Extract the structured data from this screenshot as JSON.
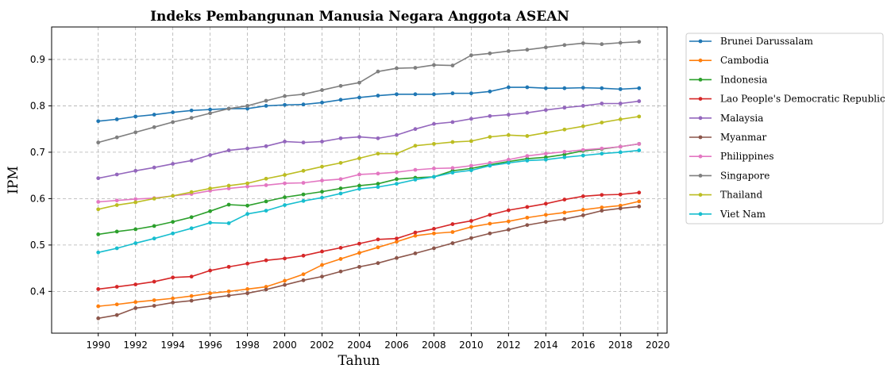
{
  "chart_data": {
    "type": "line",
    "title": "Indeks Pembangunan Manusia Negara Anggota ASEAN",
    "xlabel": "Tahun",
    "ylabel": "IPM",
    "xlim": [
      1987.5,
      2020.5
    ],
    "ylim": [
      0.31,
      0.97
    ],
    "xticks": [
      1990,
      1992,
      1994,
      1996,
      1998,
      2000,
      2002,
      2004,
      2006,
      2008,
      2010,
      2012,
      2014,
      2016,
      2018,
      2020
    ],
    "yticks": [
      0.4,
      0.5,
      0.6,
      0.7,
      0.8,
      0.9
    ],
    "grid": true,
    "legend_position": "outside-right",
    "x": [
      1990,
      1991,
      1992,
      1993,
      1994,
      1995,
      1996,
      1997,
      1998,
      1999,
      2000,
      2001,
      2002,
      2003,
      2004,
      2005,
      2006,
      2007,
      2008,
      2009,
      2010,
      2011,
      2012,
      2013,
      2014,
      2015,
      2016,
      2017,
      2018,
      2019
    ],
    "series": [
      {
        "name": "Brunei Darussalam",
        "color": "#1f77b4",
        "values": [
          0.767,
          0.771,
          0.777,
          0.781,
          0.786,
          0.79,
          0.792,
          0.794,
          0.794,
          0.8,
          0.802,
          0.803,
          0.807,
          0.813,
          0.818,
          0.822,
          0.825,
          0.825,
          0.825,
          0.827,
          0.827,
          0.831,
          0.84,
          0.84,
          0.838,
          0.838,
          0.839,
          0.838,
          0.836,
          0.838
        ]
      },
      {
        "name": "Cambodia",
        "color": "#ff7f0e",
        "values": [
          0.368,
          0.372,
          0.377,
          0.381,
          0.385,
          0.39,
          0.396,
          0.4,
          0.405,
          0.41,
          0.423,
          0.437,
          0.457,
          0.47,
          0.483,
          0.495,
          0.507,
          0.52,
          0.525,
          0.528,
          0.539,
          0.546,
          0.551,
          0.559,
          0.565,
          0.57,
          0.576,
          0.581,
          0.585,
          0.594
        ]
      },
      {
        "name": "Indonesia",
        "color": "#2ca02c",
        "values": [
          0.523,
          0.529,
          0.534,
          0.541,
          0.55,
          0.56,
          0.573,
          0.587,
          0.585,
          0.594,
          0.603,
          0.609,
          0.615,
          0.622,
          0.628,
          0.632,
          0.642,
          0.645,
          0.647,
          0.66,
          0.665,
          0.673,
          0.68,
          0.686,
          0.689,
          0.695,
          0.703,
          0.707,
          0.712,
          0.718
        ]
      },
      {
        "name": "Lao People's Democratic Republic",
        "color": "#d62728",
        "values": [
          0.405,
          0.41,
          0.415,
          0.421,
          0.43,
          0.432,
          0.445,
          0.453,
          0.46,
          0.467,
          0.471,
          0.477,
          0.486,
          0.494,
          0.503,
          0.512,
          0.514,
          0.527,
          0.535,
          0.545,
          0.552,
          0.565,
          0.575,
          0.582,
          0.589,
          0.598,
          0.605,
          0.608,
          0.609,
          0.613
        ]
      },
      {
        "name": "Malaysia",
        "color": "#9467bd",
        "values": [
          0.644,
          0.652,
          0.66,
          0.667,
          0.675,
          0.682,
          0.694,
          0.704,
          0.708,
          0.713,
          0.723,
          0.721,
          0.723,
          0.73,
          0.733,
          0.73,
          0.737,
          0.75,
          0.761,
          0.765,
          0.772,
          0.778,
          0.781,
          0.785,
          0.791,
          0.796,
          0.8,
          0.805,
          0.805,
          0.81
        ]
      },
      {
        "name": "Myanmar",
        "color": "#8c564b",
        "values": [
          0.342,
          0.349,
          0.364,
          0.369,
          0.376,
          0.38,
          0.386,
          0.391,
          0.396,
          0.404,
          0.414,
          0.424,
          0.432,
          0.443,
          0.453,
          0.461,
          0.472,
          0.482,
          0.493,
          0.504,
          0.515,
          0.525,
          0.533,
          0.543,
          0.55,
          0.556,
          0.564,
          0.574,
          0.579,
          0.583
        ]
      },
      {
        "name": "Philippines",
        "color": "#e377c2",
        "values": [
          0.593,
          0.596,
          0.599,
          0.601,
          0.606,
          0.61,
          0.617,
          0.622,
          0.626,
          0.629,
          0.633,
          0.634,
          0.639,
          0.642,
          0.652,
          0.654,
          0.657,
          0.662,
          0.665,
          0.666,
          0.671,
          0.677,
          0.684,
          0.692,
          0.697,
          0.701,
          0.705,
          0.708,
          0.712,
          0.718
        ]
      },
      {
        "name": "Singapore",
        "color": "#7f7f7f",
        "values": [
          0.721,
          0.732,
          0.743,
          0.754,
          0.765,
          0.774,
          0.784,
          0.794,
          0.8,
          0.811,
          0.821,
          0.825,
          0.834,
          0.843,
          0.85,
          0.874,
          0.881,
          0.882,
          0.888,
          0.887,
          0.909,
          0.913,
          0.918,
          0.921,
          0.926,
          0.931,
          0.935,
          0.933,
          0.936,
          0.938
        ]
      },
      {
        "name": "Thailand",
        "color": "#bcbd22",
        "values": [
          0.577,
          0.586,
          0.592,
          0.6,
          0.606,
          0.614,
          0.622,
          0.628,
          0.633,
          0.643,
          0.651,
          0.66,
          0.669,
          0.677,
          0.687,
          0.697,
          0.697,
          0.714,
          0.718,
          0.722,
          0.724,
          0.733,
          0.737,
          0.735,
          0.742,
          0.749,
          0.756,
          0.764,
          0.771,
          0.777
        ]
      },
      {
        "name": "Viet Nam",
        "color": "#17becf",
        "values": [
          0.484,
          0.493,
          0.504,
          0.514,
          0.525,
          0.536,
          0.548,
          0.547,
          0.567,
          0.574,
          0.586,
          0.595,
          0.602,
          0.611,
          0.621,
          0.625,
          0.632,
          0.641,
          0.647,
          0.656,
          0.661,
          0.671,
          0.677,
          0.682,
          0.684,
          0.689,
          0.693,
          0.697,
          0.7,
          0.704
        ]
      }
    ]
  }
}
